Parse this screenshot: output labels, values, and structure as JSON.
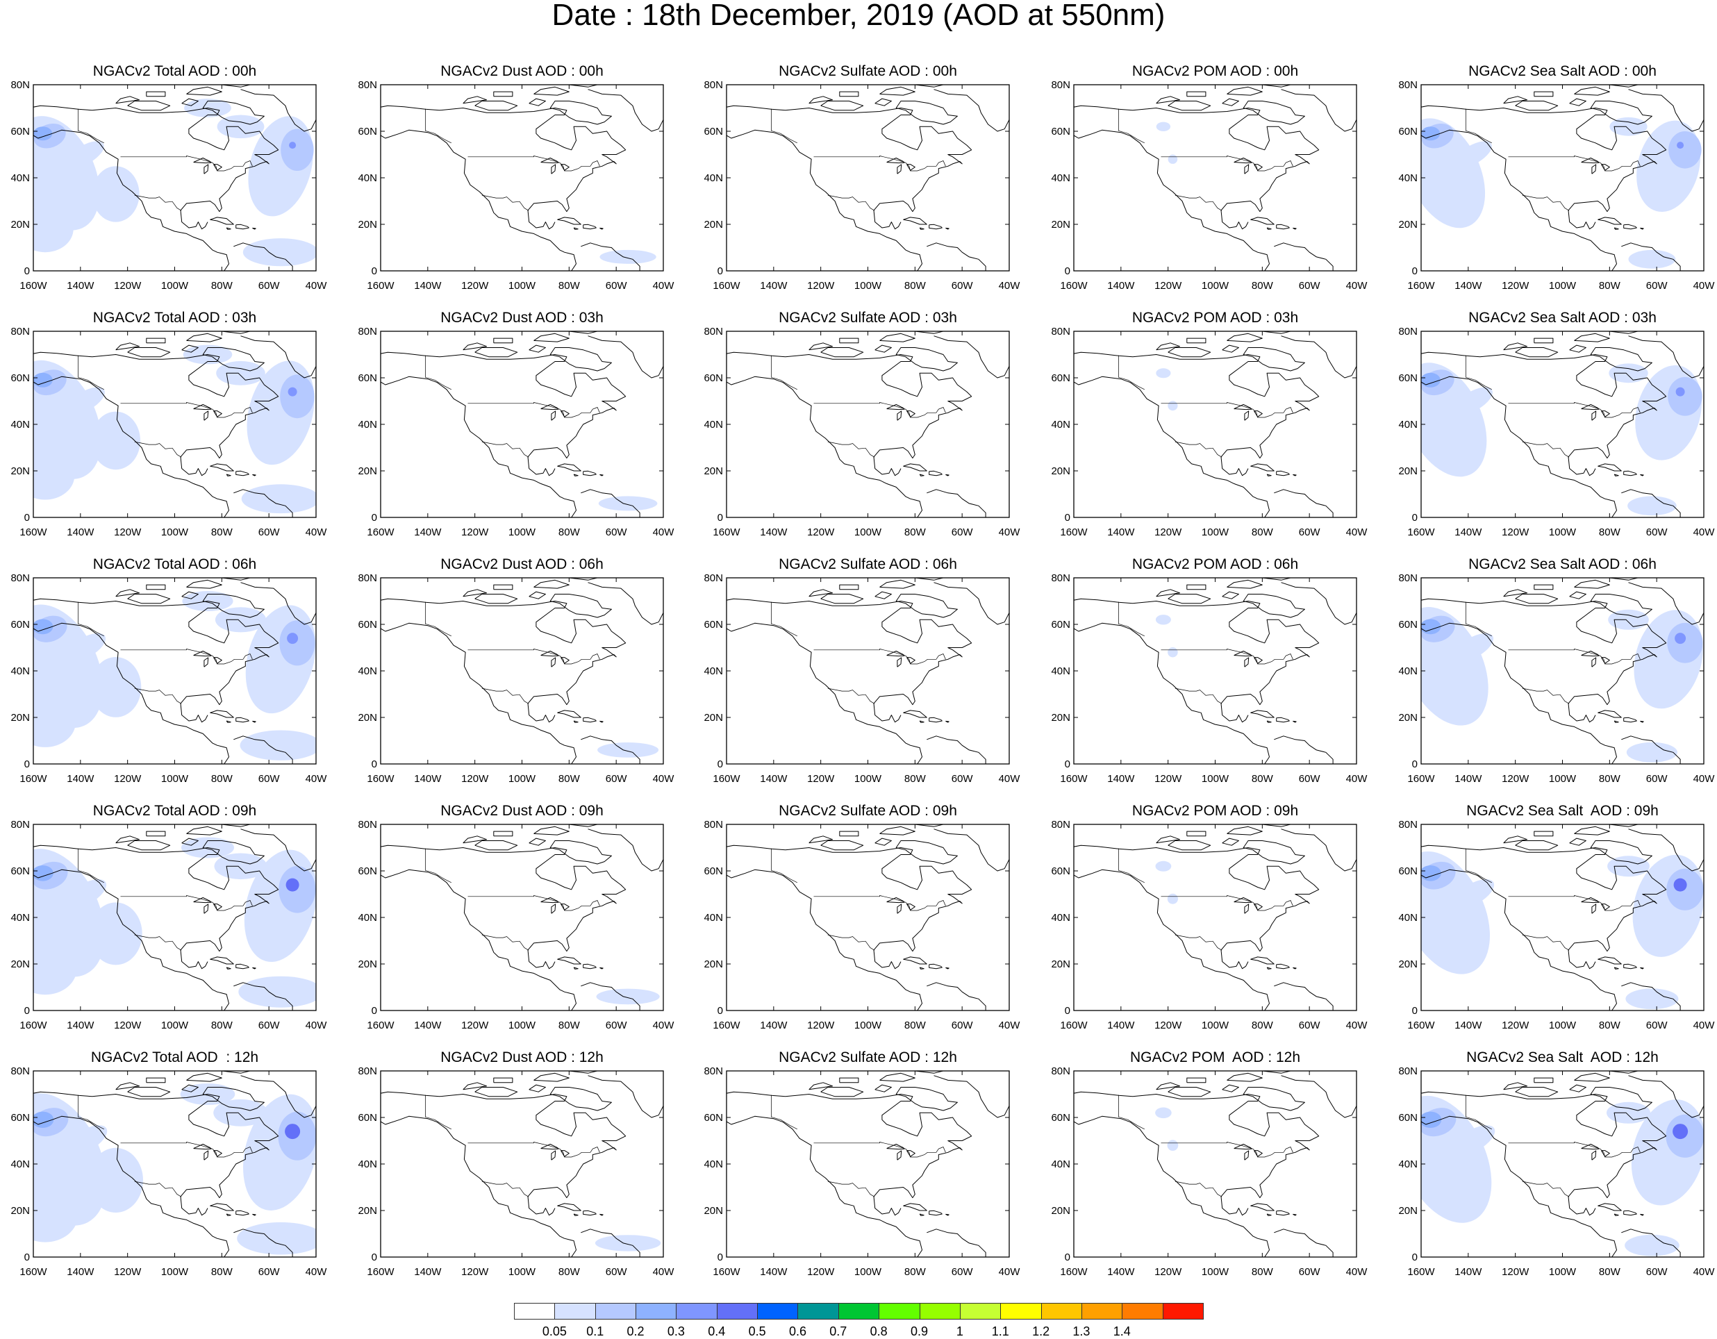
{
  "title": "Date : 18th December, 2019 (AOD at 550nm)",
  "map": {
    "lon_labels": [
      "160W",
      "140W",
      "120W",
      "100W",
      "80W",
      "60W",
      "40W"
    ],
    "lat_labels": [
      "0",
      "20N",
      "40N",
      "60N",
      "80N"
    ],
    "lon_range": [
      -160,
      -40
    ],
    "lat_range": [
      0,
      80
    ]
  },
  "columns": [
    {
      "key": "total",
      "label": "Total"
    },
    {
      "key": "dust",
      "label": "Dust"
    },
    {
      "key": "sulfate",
      "label": "Sulfate"
    },
    {
      "key": "pom",
      "label": "POM"
    },
    {
      "key": "seasalt",
      "label": "Sea Salt"
    }
  ],
  "hours": [
    "00h",
    "03h",
    "06h",
    "09h",
    "12h"
  ],
  "panel_titles": [
    [
      "NGACv2 Total AOD : 00h",
      "NGACv2 Dust AOD : 00h",
      "NGACv2 Sulfate AOD : 00h",
      "NGACv2 POM AOD : 00h",
      "NGACv2 Sea Salt AOD : 00h"
    ],
    [
      "NGACv2 Total AOD : 03h",
      "NGACv2 Dust AOD : 03h",
      "NGACv2 Sulfate AOD : 03h",
      "NGACv2 POM AOD : 03h",
      "NGACv2 Sea Salt AOD : 03h"
    ],
    [
      "NGACv2 Total AOD : 06h",
      "NGACv2 Dust AOD : 06h",
      "NGACv2 Sulfate AOD : 06h",
      "NGACv2 POM AOD : 06h",
      "NGACv2 Sea Salt AOD : 06h"
    ],
    [
      "NGACv2 Total AOD : 09h",
      "NGACv2 Dust AOD : 09h",
      "NGACv2 Sulfate AOD : 09h",
      "NGACv2 POM AOD : 09h",
      "NGACv2 Sea Salt  AOD : 09h"
    ],
    [
      "NGACv2 Total AOD  : 12h",
      "NGACv2 Dust AOD : 12h",
      "NGACv2 Sulfate AOD : 12h",
      "NGACv2 POM  AOD : 12h",
      "NGACv2 Sea Salt  AOD : 12h"
    ]
  ],
  "colorbar": {
    "labels": [
      "0.05",
      "0.1",
      "0.2",
      "0.3",
      "0.4",
      "0.5",
      "0.6",
      "0.7",
      "0.8",
      "0.9",
      "1",
      "1.1",
      "1.2",
      "1.3",
      "1.4"
    ],
    "colors": [
      "#ffffff",
      "#d6e2ff",
      "#b5c9ff",
      "#8eb2ff",
      "#7f96ff",
      "#6370f8",
      "#0063ff",
      "#009696",
      "#00c633",
      "#63ff00",
      "#96ff00",
      "#c6ff33",
      "#ffff00",
      "#ffc600",
      "#ffa000",
      "#ff7c00",
      "#ff1900"
    ]
  },
  "shading_colors": {
    "low": "#d6e2ff",
    "mid": "#b5c9ff",
    "high": "#8eb2ff",
    "peak": "#7f96ff",
    "max": "#6370f8"
  }
}
